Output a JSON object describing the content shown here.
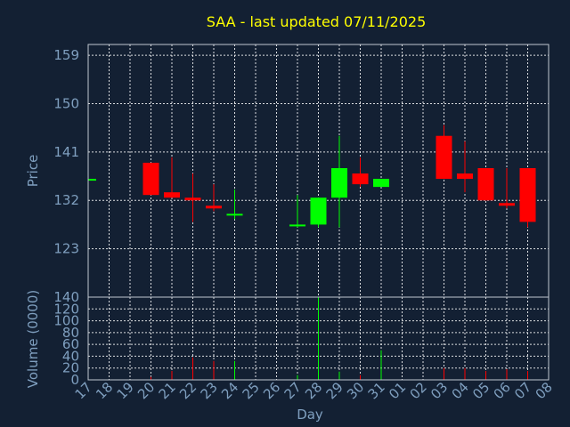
{
  "chart_data": {
    "type": "candlestick",
    "title": "SAA - last updated 07/11/2025",
    "xlabel": "Day",
    "price_panel": {
      "ylabel": "Price",
      "ylim": [
        114,
        161
      ],
      "yticks": [
        123,
        132,
        141,
        150,
        159
      ],
      "grid": true
    },
    "volume_panel": {
      "ylabel": "Volume (0000)",
      "ylim": [
        0,
        140
      ],
      "yticks": [
        0,
        20,
        40,
        60,
        80,
        100,
        120,
        140
      ],
      "grid": true
    },
    "x_ticks": [
      "17",
      "18",
      "19",
      "20",
      "21",
      "22",
      "23",
      "24",
      "25",
      "26",
      "27",
      "28",
      "29",
      "30",
      "31",
      "01",
      "02",
      "03",
      "04",
      "05",
      "06",
      "07",
      "08"
    ],
    "colors": {
      "up": "#00ff00",
      "down": "#ff0000",
      "background": "#132033",
      "title": "#ffff00",
      "axis_text": "#7f9fbf"
    },
    "candles": [
      {
        "day": "17",
        "open": 136,
        "high": 136,
        "low": 136,
        "close": 136,
        "volume": 0
      },
      {
        "day": "20",
        "open": 139,
        "high": 139,
        "low": 133,
        "close": 133,
        "volume": 5
      },
      {
        "day": "21",
        "open": 133.5,
        "high": 140,
        "low": 132.5,
        "close": 132.5,
        "volume": 15
      },
      {
        "day": "22",
        "open": 132.5,
        "high": 137,
        "low": 128,
        "close": 132,
        "volume": 38
      },
      {
        "day": "23",
        "open": 131,
        "high": 135,
        "low": 130,
        "close": 130.5,
        "volume": 32
      },
      {
        "day": "24",
        "open": 129.5,
        "high": 134,
        "low": 128.5,
        "close": 129.5,
        "volume": 32
      },
      {
        "day": "27",
        "open": 127.5,
        "high": 133,
        "low": 127,
        "close": 127.5,
        "volume": 8
      },
      {
        "day": "28",
        "open": 127.5,
        "high": 132.5,
        "low": 127,
        "close": 132.5,
        "volume": 140
      },
      {
        "day": "29",
        "open": 132.5,
        "high": 144,
        "low": 127,
        "close": 138,
        "volume": 14
      },
      {
        "day": "30",
        "open": 137,
        "high": 140,
        "low": 134.5,
        "close": 135,
        "volume": 8
      },
      {
        "day": "31",
        "open": 134.5,
        "high": 136,
        "low": 134.5,
        "close": 136,
        "volume": 50
      },
      {
        "day": "03",
        "open": 144,
        "high": 146,
        "low": 136,
        "close": 136,
        "volume": 20
      },
      {
        "day": "04",
        "open": 137,
        "high": 143,
        "low": 133.5,
        "close": 136,
        "volume": 20
      },
      {
        "day": "05",
        "open": 138,
        "high": 138,
        "low": 132,
        "close": 132,
        "volume": 15
      },
      {
        "day": "06",
        "open": 131.5,
        "high": 138,
        "low": 130.5,
        "close": 131,
        "volume": 18
      },
      {
        "day": "07",
        "open": 138,
        "high": 138,
        "low": 127,
        "close": 128,
        "volume": 15
      }
    ]
  }
}
